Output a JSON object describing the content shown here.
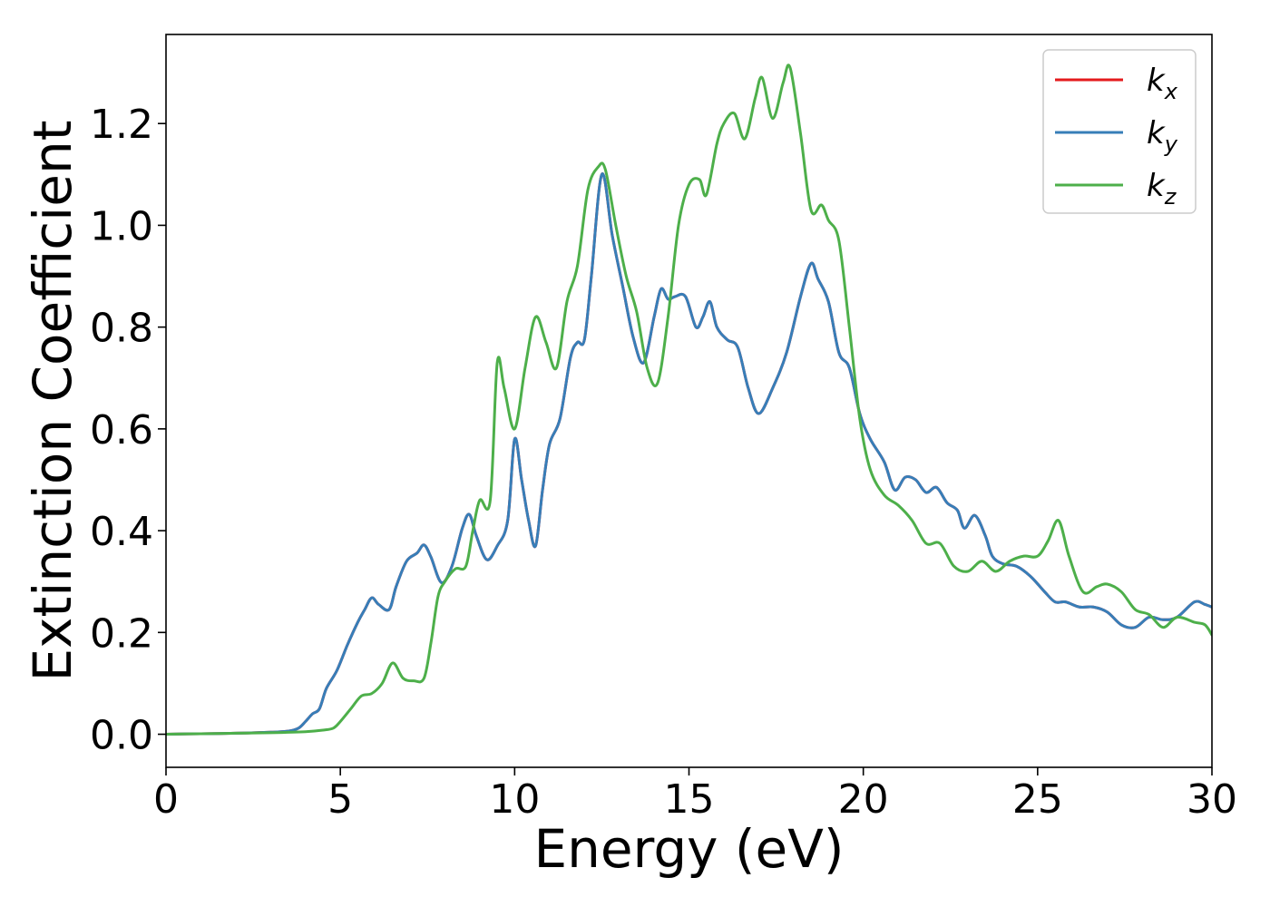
{
  "chart_data": {
    "type": "line",
    "title": "",
    "xlabel": "Energy (eV)",
    "ylabel": "Extinction Coefficient",
    "xlim": [
      0,
      30
    ],
    "ylim": [
      -0.065,
      1.375
    ],
    "xticks": [
      0,
      5,
      10,
      15,
      20,
      25,
      30
    ],
    "xtick_labels": [
      "0",
      "5",
      "10",
      "15",
      "20",
      "25",
      "30"
    ],
    "yticks": [
      0.0,
      0.2,
      0.4,
      0.6,
      0.8,
      1.0,
      1.2
    ],
    "ytick_labels": [
      "0.0",
      "0.2",
      "0.4",
      "0.6",
      "0.8",
      "1.0",
      "1.2"
    ],
    "grid": false,
    "legend": {
      "position": "top-right",
      "entries": [
        {
          "base": "k",
          "sub": "x",
          "color": "#e41a1c"
        },
        {
          "base": "k",
          "sub": "y",
          "color": "#377eb8"
        },
        {
          "base": "k",
          "sub": "z",
          "color": "#4daf4a"
        }
      ]
    },
    "series": [
      {
        "name": "kx",
        "color": "#e41a1c",
        "x": [
          0,
          1,
          2,
          3,
          3.5,
          3.8,
          4.0,
          4.2,
          4.4,
          4.6,
          4.9,
          5.2,
          5.5,
          5.7,
          5.9,
          6.1,
          6.4,
          6.6,
          6.9,
          7.2,
          7.4,
          7.6,
          7.9,
          8.2,
          8.5,
          8.7,
          8.9,
          9.2,
          9.5,
          9.8,
          10.0,
          10.2,
          10.4,
          10.6,
          10.8,
          11.0,
          11.3,
          11.6,
          11.8,
          12.0,
          12.2,
          12.5,
          12.8,
          13.1,
          13.4,
          13.7,
          14.0,
          14.2,
          14.4,
          14.6,
          14.9,
          15.2,
          15.4,
          15.6,
          15.8,
          16.1,
          16.4,
          16.7,
          17.0,
          17.4,
          17.8,
          18.2,
          18.5,
          18.7,
          19.0,
          19.3,
          19.6,
          19.9,
          20.2,
          20.6,
          20.9,
          21.2,
          21.5,
          21.8,
          22.1,
          22.4,
          22.7,
          22.9,
          23.2,
          23.5,
          23.7,
          24.0,
          24.4,
          24.8,
          25.2,
          25.5,
          25.8,
          26.2,
          26.6,
          27.0,
          27.4,
          27.8,
          28.2,
          28.6,
          29.0,
          29.5,
          29.8,
          30.0
        ],
        "y": [
          0.0,
          0.001,
          0.002,
          0.004,
          0.006,
          0.012,
          0.025,
          0.04,
          0.05,
          0.09,
          0.125,
          0.175,
          0.22,
          0.245,
          0.268,
          0.255,
          0.245,
          0.29,
          0.34,
          0.356,
          0.372,
          0.348,
          0.298,
          0.33,
          0.405,
          0.432,
          0.39,
          0.343,
          0.37,
          0.42,
          0.58,
          0.5,
          0.42,
          0.37,
          0.48,
          0.57,
          0.62,
          0.74,
          0.77,
          0.775,
          0.9,
          1.1,
          0.98,
          0.88,
          0.78,
          0.73,
          0.82,
          0.875,
          0.855,
          0.86,
          0.86,
          0.8,
          0.82,
          0.85,
          0.8,
          0.775,
          0.76,
          0.68,
          0.63,
          0.68,
          0.75,
          0.86,
          0.925,
          0.895,
          0.85,
          0.75,
          0.72,
          0.63,
          0.58,
          0.535,
          0.48,
          0.505,
          0.5,
          0.475,
          0.485,
          0.455,
          0.44,
          0.405,
          0.43,
          0.39,
          0.35,
          0.335,
          0.33,
          0.31,
          0.28,
          0.26,
          0.26,
          0.25,
          0.25,
          0.24,
          0.215,
          0.21,
          0.23,
          0.225,
          0.23,
          0.26,
          0.255,
          0.25
        ]
      },
      {
        "name": "ky",
        "color": "#377eb8",
        "x": [
          0,
          1,
          2,
          3,
          3.5,
          3.8,
          4.0,
          4.2,
          4.4,
          4.6,
          4.9,
          5.2,
          5.5,
          5.7,
          5.9,
          6.1,
          6.4,
          6.6,
          6.9,
          7.2,
          7.4,
          7.6,
          7.9,
          8.2,
          8.5,
          8.7,
          8.9,
          9.2,
          9.5,
          9.8,
          10.0,
          10.2,
          10.4,
          10.6,
          10.8,
          11.0,
          11.3,
          11.6,
          11.8,
          12.0,
          12.2,
          12.5,
          12.8,
          13.1,
          13.4,
          13.7,
          14.0,
          14.2,
          14.4,
          14.6,
          14.9,
          15.2,
          15.4,
          15.6,
          15.8,
          16.1,
          16.4,
          16.7,
          17.0,
          17.4,
          17.8,
          18.2,
          18.5,
          18.7,
          19.0,
          19.3,
          19.6,
          19.9,
          20.2,
          20.6,
          20.9,
          21.2,
          21.5,
          21.8,
          22.1,
          22.4,
          22.7,
          22.9,
          23.2,
          23.5,
          23.7,
          24.0,
          24.4,
          24.8,
          25.2,
          25.5,
          25.8,
          26.2,
          26.6,
          27.0,
          27.4,
          27.8,
          28.2,
          28.6,
          29.0,
          29.5,
          29.8,
          30.0
        ],
        "y": [
          0.0,
          0.001,
          0.002,
          0.004,
          0.006,
          0.012,
          0.025,
          0.04,
          0.05,
          0.09,
          0.125,
          0.175,
          0.22,
          0.245,
          0.268,
          0.255,
          0.245,
          0.29,
          0.34,
          0.356,
          0.372,
          0.348,
          0.298,
          0.33,
          0.405,
          0.432,
          0.39,
          0.343,
          0.37,
          0.42,
          0.58,
          0.5,
          0.42,
          0.37,
          0.48,
          0.57,
          0.62,
          0.74,
          0.77,
          0.775,
          0.9,
          1.1,
          0.98,
          0.88,
          0.78,
          0.73,
          0.82,
          0.875,
          0.855,
          0.86,
          0.86,
          0.8,
          0.82,
          0.85,
          0.8,
          0.775,
          0.76,
          0.68,
          0.63,
          0.68,
          0.75,
          0.86,
          0.925,
          0.895,
          0.85,
          0.75,
          0.72,
          0.63,
          0.58,
          0.535,
          0.48,
          0.505,
          0.5,
          0.475,
          0.485,
          0.455,
          0.44,
          0.405,
          0.43,
          0.39,
          0.35,
          0.335,
          0.33,
          0.31,
          0.28,
          0.26,
          0.26,
          0.25,
          0.25,
          0.24,
          0.215,
          0.21,
          0.23,
          0.225,
          0.23,
          0.26,
          0.255,
          0.25
        ]
      },
      {
        "name": "kz",
        "color": "#4daf4a",
        "x": [
          0,
          1,
          2,
          3,
          4,
          4.5,
          4.8,
          5.0,
          5.3,
          5.6,
          5.9,
          6.2,
          6.5,
          6.8,
          7.1,
          7.4,
          7.6,
          7.8,
          8.0,
          8.3,
          8.6,
          8.8,
          9.0,
          9.3,
          9.5,
          9.7,
          10.0,
          10.3,
          10.6,
          10.9,
          11.2,
          11.5,
          11.8,
          12.1,
          12.4,
          12.6,
          12.9,
          13.2,
          13.5,
          13.8,
          14.1,
          14.4,
          14.7,
          15.0,
          15.3,
          15.5,
          15.8,
          16.0,
          16.3,
          16.6,
          16.9,
          17.1,
          17.4,
          17.7,
          17.9,
          18.2,
          18.5,
          18.8,
          19.0,
          19.3,
          19.6,
          19.9,
          20.2,
          20.6,
          21.0,
          21.4,
          21.8,
          22.2,
          22.6,
          23.0,
          23.4,
          23.8,
          24.2,
          24.6,
          25.0,
          25.3,
          25.6,
          25.9,
          26.3,
          26.7,
          27.0,
          27.4,
          27.8,
          28.2,
          28.6,
          29.0,
          29.5,
          29.8,
          30.0
        ],
        "y": [
          0.0,
          0.001,
          0.002,
          0.003,
          0.005,
          0.008,
          0.012,
          0.025,
          0.05,
          0.075,
          0.08,
          0.1,
          0.14,
          0.11,
          0.105,
          0.11,
          0.18,
          0.27,
          0.3,
          0.325,
          0.33,
          0.4,
          0.46,
          0.46,
          0.73,
          0.68,
          0.6,
          0.72,
          0.82,
          0.77,
          0.72,
          0.85,
          0.92,
          1.07,
          1.115,
          1.11,
          1.0,
          0.9,
          0.83,
          0.72,
          0.69,
          0.82,
          1.0,
          1.08,
          1.09,
          1.06,
          1.16,
          1.2,
          1.22,
          1.17,
          1.25,
          1.29,
          1.21,
          1.28,
          1.31,
          1.18,
          1.03,
          1.04,
          1.01,
          0.97,
          0.8,
          0.62,
          0.52,
          0.47,
          0.45,
          0.42,
          0.375,
          0.375,
          0.33,
          0.32,
          0.34,
          0.32,
          0.34,
          0.35,
          0.35,
          0.38,
          0.42,
          0.35,
          0.28,
          0.29,
          0.295,
          0.28,
          0.245,
          0.235,
          0.21,
          0.23,
          0.22,
          0.215,
          0.195
        ]
      }
    ]
  }
}
